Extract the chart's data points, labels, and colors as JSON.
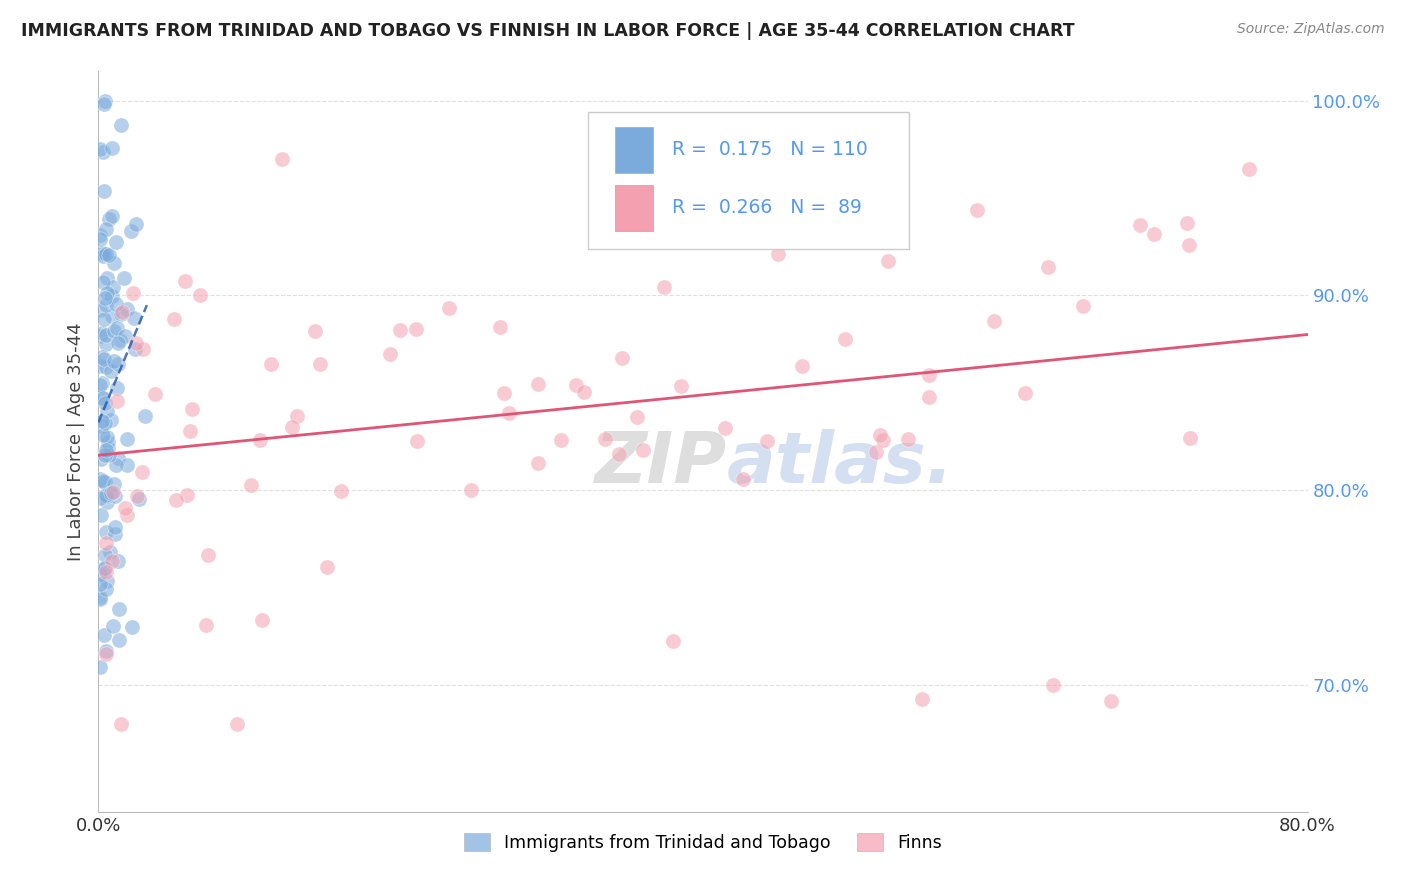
{
  "title": "IMMIGRANTS FROM TRINIDAD AND TOBAGO VS FINNISH IN LABOR FORCE | AGE 35-44 CORRELATION CHART",
  "source": "Source: ZipAtlas.com",
  "ylabel": "In Labor Force | Age 35-44",
  "xlim": [
    0.0,
    0.8
  ],
  "ylim": [
    0.635,
    1.015
  ],
  "blue_R": 0.175,
  "blue_N": 110,
  "pink_R": 0.266,
  "pink_N": 89,
  "blue_color": "#7AABDC",
  "pink_color": "#F4A0B0",
  "blue_line_color": "#2255AA",
  "pink_line_color": "#E05575",
  "legend_label_blue": "Immigrants from Trinidad and Tobago",
  "legend_label_pink": "Finns",
  "background_color": "#FFFFFF",
  "grid_color": "#DDDDDD",
  "title_color": "#222222",
  "ylabel_color": "#444444",
  "tick_color_right": "#5599EE",
  "tick_color_bottom": "#333333",
  "yticks": [
    0.7,
    0.8,
    0.9,
    1.0
  ],
  "ytick_labels": [
    "70.0%",
    "80.0%",
    "90.0%",
    "100.0%"
  ],
  "xtick_labels": [
    "0.0%",
    "80.0%"
  ]
}
